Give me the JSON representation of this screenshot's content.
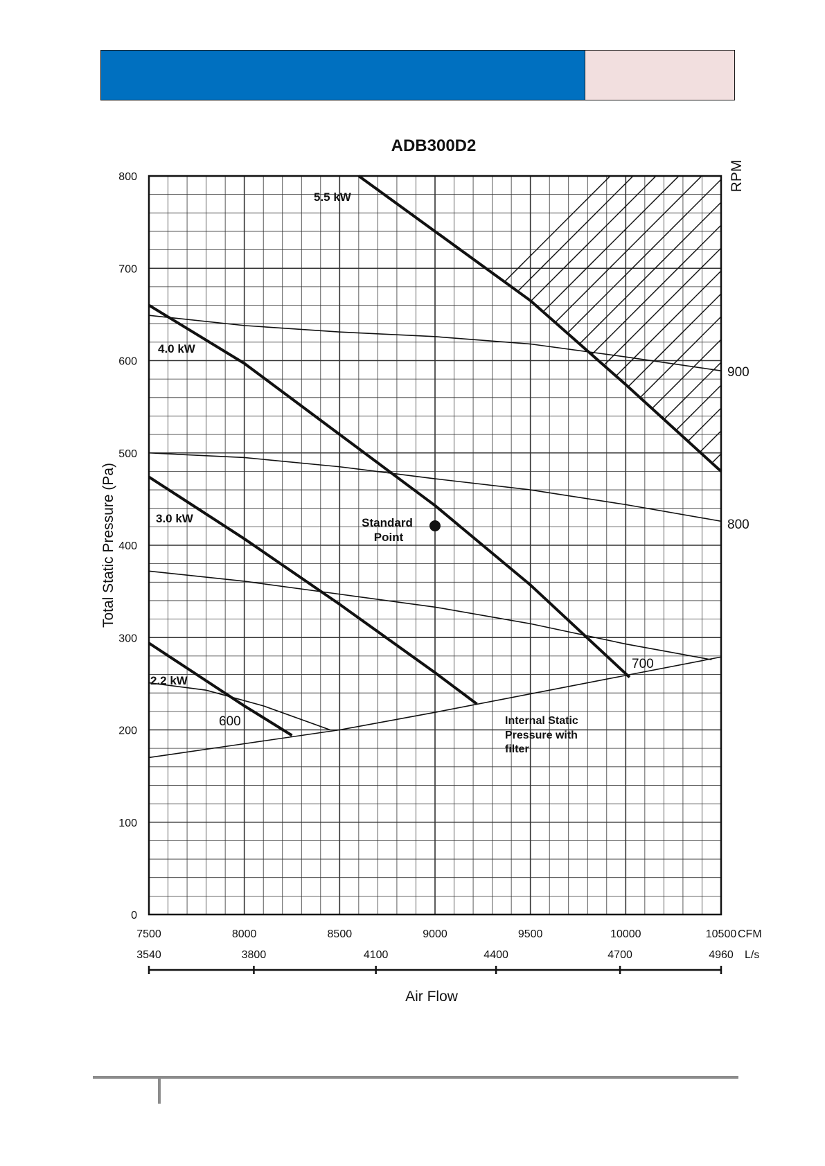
{
  "header": {
    "accent_color": "#0070c0",
    "secondary_color": "#f2dfdf"
  },
  "chart_data": {
    "type": "line",
    "title": "ADB300D2",
    "xlabel": "Air Flow",
    "ylabel": "Total Static Pressure (Pa)",
    "right_axis_label": "RPM",
    "xlim": [
      7500,
      10500
    ],
    "ylim": [
      0,
      800
    ],
    "grid": true,
    "x_ticks": [
      "7500",
      "8000",
      "8500",
      "9000",
      "9500",
      "10000",
      "10500"
    ],
    "x_unit": "CFM",
    "y_ticks": [
      "0",
      "100",
      "200",
      "300",
      "400",
      "500",
      "600",
      "700",
      "800"
    ],
    "secondary_axis": {
      "unit": "L/s",
      "ticks": [
        {
          "cfm": 7500,
          "label": "3540"
        },
        {
          "cfm": 8050,
          "label": "3800"
        },
        {
          "cfm": 8690,
          "label": "4100"
        },
        {
          "cfm": 9320,
          "label": "4400"
        },
        {
          "cfm": 9970,
          "label": "4700"
        },
        {
          "cfm": 10500,
          "label": "4960"
        }
      ]
    },
    "power_lines": [
      {
        "name": "5.5 kW",
        "points": [
          [
            8600,
            800
          ],
          [
            9000,
            740
          ],
          [
            9500,
            665
          ],
          [
            10000,
            574
          ],
          [
            10500,
            480
          ]
        ]
      },
      {
        "name": "4.0 kW",
        "points": [
          [
            7500,
            660
          ],
          [
            8000,
            597
          ],
          [
            8500,
            520
          ],
          [
            9000,
            443
          ],
          [
            9500,
            357
          ],
          [
            10020,
            257
          ]
        ]
      },
      {
        "name": "3.0 kW",
        "points": [
          [
            7500,
            474
          ],
          [
            8000,
            407
          ],
          [
            8500,
            336
          ],
          [
            9000,
            262
          ],
          [
            9220,
            228
          ]
        ]
      },
      {
        "name": "2.2 kW",
        "points": [
          [
            7500,
            294
          ],
          [
            8000,
            226
          ],
          [
            8250,
            194
          ]
        ]
      }
    ],
    "rpm_lines": [
      {
        "name": "900",
        "points": [
          [
            7500,
            649
          ],
          [
            8000,
            638
          ],
          [
            8500,
            631
          ],
          [
            9000,
            626
          ],
          [
            9500,
            618
          ],
          [
            10000,
            604
          ],
          [
            10500,
            589
          ]
        ]
      },
      {
        "name": "800",
        "points": [
          [
            7500,
            500
          ],
          [
            8000,
            495
          ],
          [
            8500,
            485
          ],
          [
            9000,
            472
          ],
          [
            9500,
            460
          ],
          [
            10000,
            444
          ],
          [
            10500,
            426
          ]
        ]
      },
      {
        "name": "700",
        "points": [
          [
            7500,
            372
          ],
          [
            8000,
            361
          ],
          [
            8500,
            347
          ],
          [
            9000,
            333
          ],
          [
            9500,
            315
          ],
          [
            10000,
            293
          ],
          [
            10450,
            276
          ]
        ]
      },
      {
        "name": "600",
        "points": [
          [
            7500,
            251
          ],
          [
            7800,
            243
          ],
          [
            8100,
            226
          ],
          [
            8450,
            200
          ]
        ]
      }
    ],
    "internal_static_pressure": {
      "label": "Internal Static Pressure with filter",
      "points": [
        [
          7500,
          170
        ],
        [
          8000,
          185
        ],
        [
          8500,
          200
        ],
        [
          9000,
          219
        ],
        [
          9500,
          239
        ],
        [
          10000,
          259
        ],
        [
          10500,
          279
        ]
      ]
    },
    "standard_point": {
      "label": "Standard Point",
      "x": 9000,
      "y": 421
    },
    "hatched_region": "above 5.5 kW",
    "annotations": {
      "kw_5_5": "5.5 kW",
      "kw_4_0": "4.0 kW",
      "kw_3_0": "3.0 kW",
      "kw_2_2": "2.2 kW",
      "rpm_900": "900",
      "rpm_800": "800",
      "rpm_700": "700",
      "rpm_600": "600",
      "standard_l1": "Standard",
      "standard_l2": "Point",
      "isp_l1": "Internal Static",
      "isp_l2": "Pressure with",
      "isp_l3": "filter"
    }
  }
}
